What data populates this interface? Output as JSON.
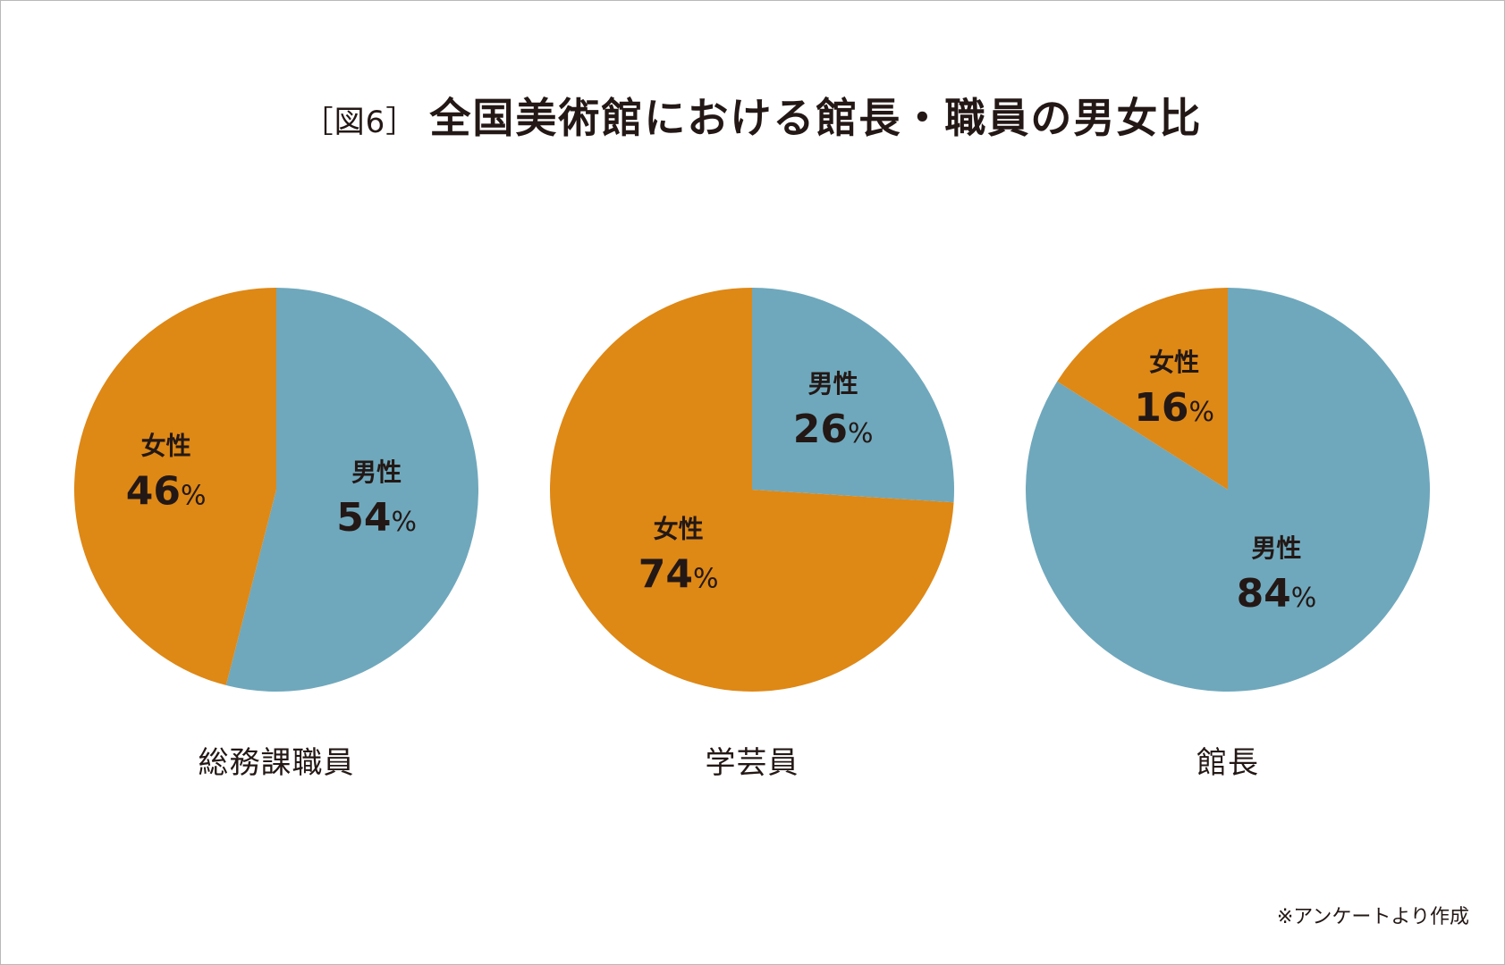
{
  "title": {
    "tag": "［図6］",
    "main": "全国美術館における館長・職員の男女比"
  },
  "colors": {
    "male": "#6fa8bc",
    "female": "#de8816"
  },
  "unit": "%",
  "chart_data": [
    {
      "type": "pie",
      "title": "総務課職員",
      "slices": [
        {
          "label": "男性",
          "value": 54,
          "color": "#6fa8bc"
        },
        {
          "label": "女性",
          "value": 46,
          "color": "#de8816"
        }
      ]
    },
    {
      "type": "pie",
      "title": "学芸員",
      "slices": [
        {
          "label": "男性",
          "value": 26,
          "color": "#6fa8bc"
        },
        {
          "label": "女性",
          "value": 74,
          "color": "#de8816"
        }
      ]
    },
    {
      "type": "pie",
      "title": "館長",
      "slices": [
        {
          "label": "男性",
          "value": 84,
          "color": "#6fa8bc"
        },
        {
          "label": "女性",
          "value": 16,
          "color": "#de8816"
        }
      ]
    }
  ],
  "source_note": "※アンケートより作成"
}
